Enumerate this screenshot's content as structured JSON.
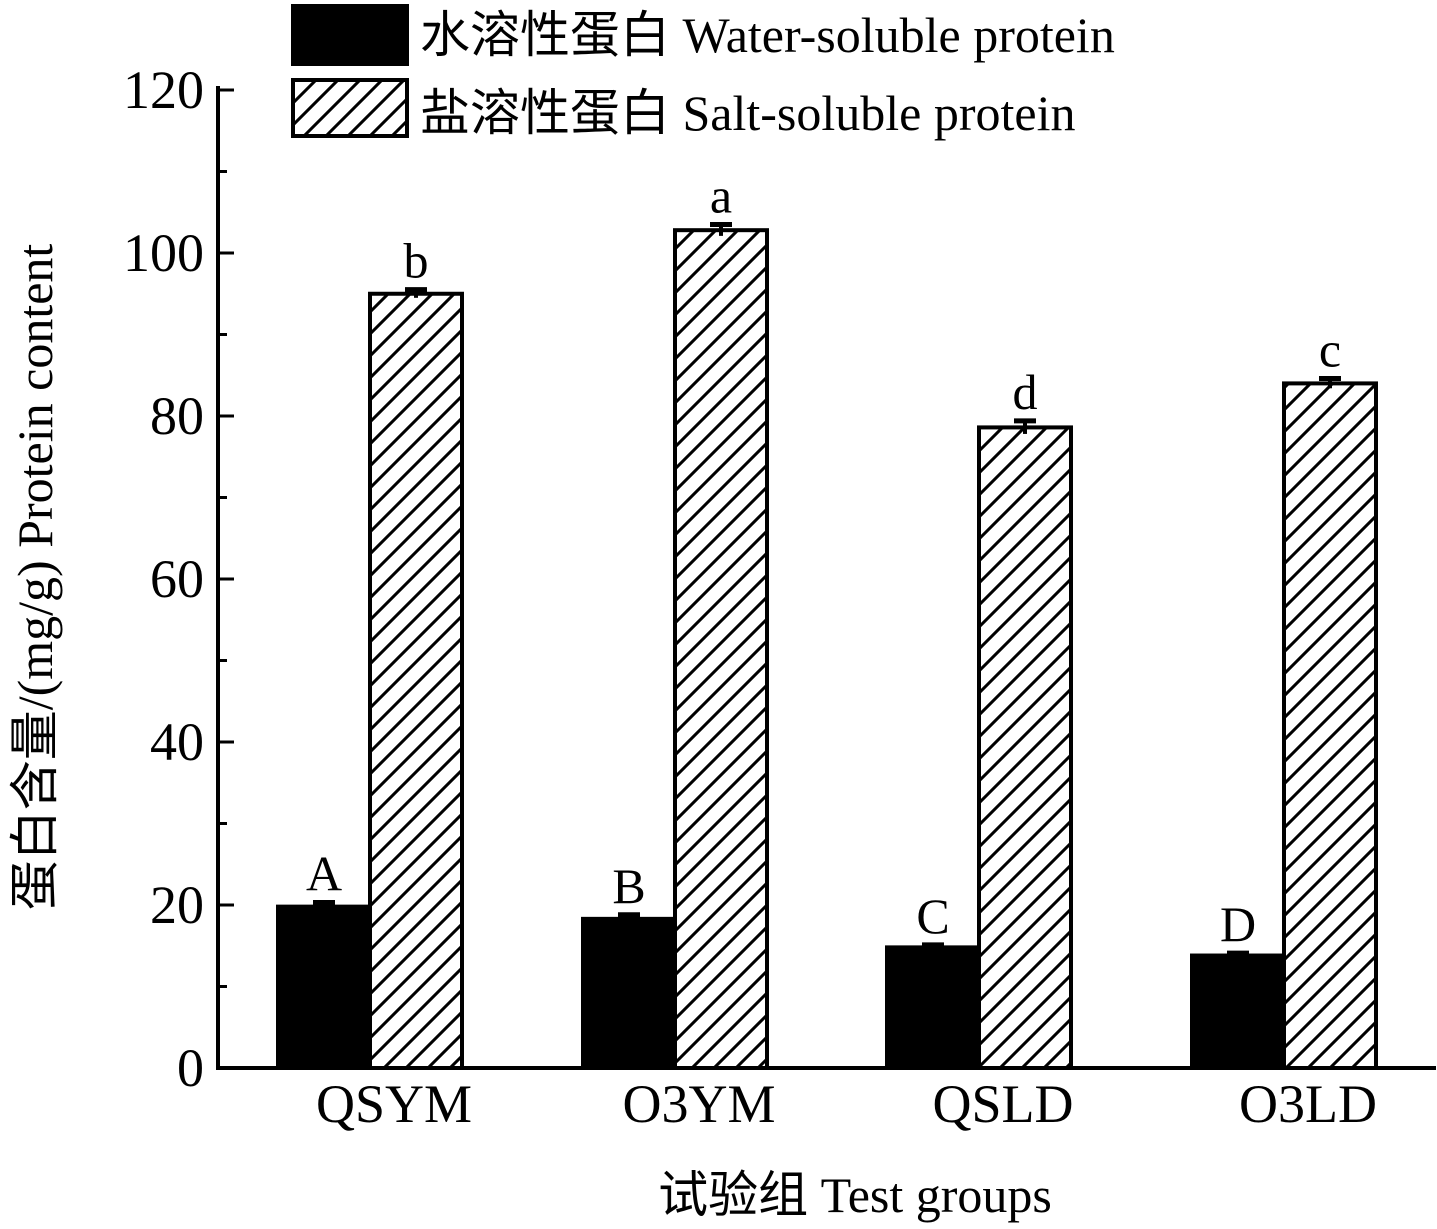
{
  "chart_data": {
    "type": "bar",
    "title": "",
    "categories": [
      "QSYM",
      "O3YM",
      "QSLD",
      "O3LD"
    ],
    "series": [
      {
        "name": "水溶性蛋白 Water-soluble protein",
        "values": [
          19.8,
          18.3,
          14.8,
          13.8
        ],
        "errors": [
          0.5,
          0.5,
          0.3,
          0.3
        ],
        "labels": [
          "A",
          "B",
          "C",
          "D"
        ],
        "fill": "solid",
        "color": "#000000"
      },
      {
        "name": "盐溶性蛋白 Salt-soluble protein",
        "values": [
          95.0,
          102.8,
          78.6,
          84.0
        ],
        "errors": [
          0.5,
          0.7,
          0.8,
          0.6
        ],
        "labels": [
          "b",
          "a",
          "d",
          "c"
        ],
        "fill": "hatched",
        "color": "#000000"
      }
    ],
    "xlabel": "试验组 Test groups",
    "ylabel": "蛋白含量/(mg/g) Protein content",
    "ylim": [
      0,
      120
    ],
    "yticks": [
      0,
      20,
      40,
      60,
      80,
      100,
      120
    ],
    "legend_position": "top",
    "grid": false
  }
}
